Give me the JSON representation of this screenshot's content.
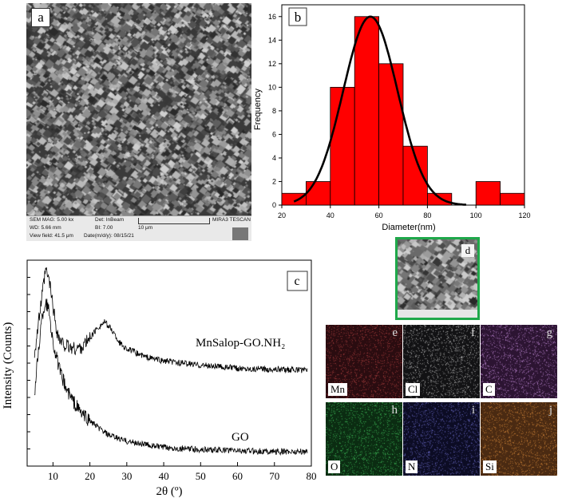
{
  "panel_a": {
    "label": "a",
    "sem": {
      "sem_mag": "SEM MAG: 5.00 kx",
      "det": "Det: InBeam",
      "wd": "WD: 5.66 mm",
      "bi": "BI: 7.00",
      "view_field": "View field: 41.5 μm",
      "date": "Date(m/d/y): 08/15/21",
      "scale": "10 μm",
      "instrument": "MIRA3 TESCAN"
    }
  },
  "panel_b": {
    "label": "b"
  },
  "panel_c": {
    "label": "c"
  },
  "panel_d": {
    "label": "d"
  },
  "eds_maps": [
    {
      "letter": "e",
      "element": "Mn",
      "color": "#b04040",
      "bg": "#2a0c10"
    },
    {
      "letter": "f",
      "element": "Cl",
      "color": "#bfbfbf",
      "bg": "#121214"
    },
    {
      "letter": "g",
      "element": "C",
      "color": "#c28ad8",
      "bg": "#2c1432"
    },
    {
      "letter": "h",
      "element": "O",
      "color": "#3fc05a",
      "bg": "#0b2c12"
    },
    {
      "letter": "i",
      "element": "N",
      "color": "#6a6ac8",
      "bg": "#0c0c24"
    },
    {
      "letter": "j",
      "element": "Si",
      "color": "#d88a3a",
      "bg": "#4a2a12"
    }
  ],
  "chart_data": [
    {
      "type": "bar",
      "panel": "b",
      "title": "",
      "xlabel": "Diameter(nm)",
      "ylabel": "Frequency",
      "xlim": [
        20,
        120
      ],
      "ylim": [
        0,
        17
      ],
      "xticks": [
        20,
        40,
        60,
        80,
        100,
        120
      ],
      "yticks": [
        0,
        2,
        4,
        6,
        8,
        10,
        12,
        14,
        16
      ],
      "bin_width": 10,
      "bin_edges_left": [
        20,
        30,
        40,
        50,
        60,
        70,
        80,
        90,
        100,
        110
      ],
      "values": [
        1,
        2,
        10,
        16,
        12,
        5,
        1,
        0,
        2,
        1
      ],
      "bar_color": "#ff0000",
      "fit": {
        "type": "gaussian",
        "center": 56.5,
        "amplitude": 16,
        "sigma": 11.2,
        "color": "#000000"
      }
    },
    {
      "type": "line",
      "panel": "c",
      "title": "",
      "xlabel": "2θ (º)",
      "ylabel": "Intensity (Counts)",
      "xlim": [
        3,
        80
      ],
      "xticks": [
        10,
        20,
        30,
        40,
        50,
        60,
        70,
        80
      ],
      "grid": false,
      "series": [
        {
          "name": "MnSalop-GO.NH₂",
          "points": [
            [
              5,
              0.55
            ],
            [
              7,
              0.82
            ],
            [
              8,
              0.95
            ],
            [
              9,
              0.9
            ],
            [
              10,
              0.78
            ],
            [
              11,
              0.66
            ],
            [
              12,
              0.6
            ],
            [
              14,
              0.58
            ],
            [
              16,
              0.57
            ],
            [
              18,
              0.58
            ],
            [
              20,
              0.62
            ],
            [
              22,
              0.67
            ],
            [
              24,
              0.7
            ],
            [
              26,
              0.66
            ],
            [
              28,
              0.6
            ],
            [
              30,
              0.57
            ],
            [
              35,
              0.53
            ],
            [
              40,
              0.51
            ],
            [
              45,
              0.5
            ],
            [
              50,
              0.49
            ],
            [
              60,
              0.475
            ],
            [
              70,
              0.47
            ],
            [
              79,
              0.465
            ]
          ]
        },
        {
          "name": "GO",
          "points": [
            [
              5,
              0.35
            ],
            [
              6,
              0.55
            ],
            [
              7,
              0.72
            ],
            [
              8,
              0.8
            ],
            [
              9,
              0.75
            ],
            [
              10,
              0.6
            ],
            [
              12,
              0.45
            ],
            [
              14,
              0.36
            ],
            [
              16,
              0.3
            ],
            [
              18,
              0.25
            ],
            [
              20,
              0.22
            ],
            [
              22,
              0.19
            ],
            [
              25,
              0.15
            ],
            [
              30,
              0.12
            ],
            [
              40,
              0.09
            ],
            [
              50,
              0.08
            ],
            [
              60,
              0.075
            ],
            [
              70,
              0.07
            ],
            [
              79,
              0.07
            ]
          ]
        }
      ]
    }
  ]
}
